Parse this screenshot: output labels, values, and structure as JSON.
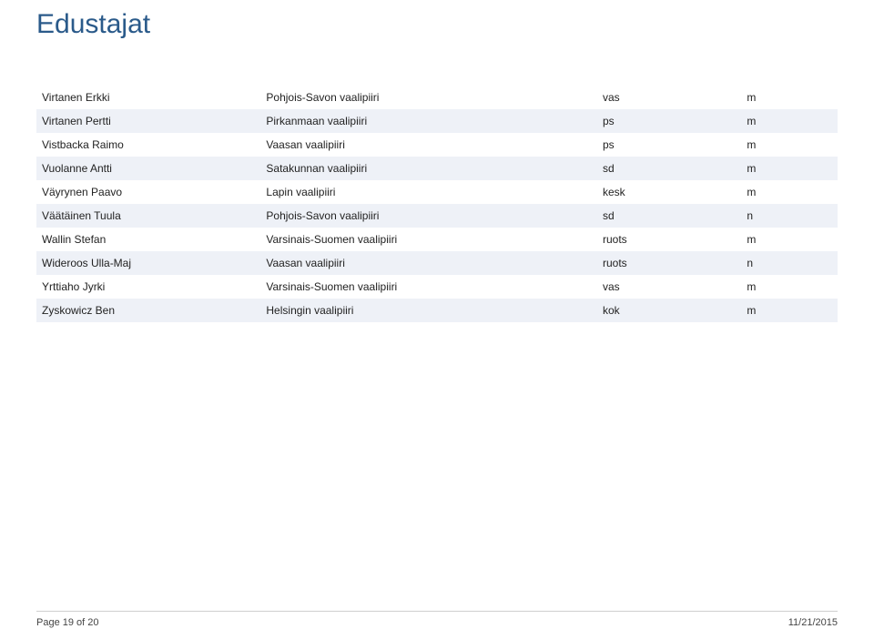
{
  "title": "Edustajat",
  "rows": [
    {
      "name": "Virtanen Erkki",
      "district": "Pohjois-Savon vaalipiiri",
      "party": "vas",
      "flag": "m",
      "alt": false
    },
    {
      "name": "Virtanen Pertti",
      "district": "Pirkanmaan vaalipiiri",
      "party": "ps",
      "flag": "m",
      "alt": true
    },
    {
      "name": "Vistbacka Raimo",
      "district": "Vaasan vaalipiiri",
      "party": "ps",
      "flag": "m",
      "alt": false
    },
    {
      "name": "Vuolanne Antti",
      "district": "Satakunnan vaalipiiri",
      "party": "sd",
      "flag": "m",
      "alt": true
    },
    {
      "name": "Väyrynen Paavo",
      "district": "Lapin vaalipiiri",
      "party": "kesk",
      "flag": "m",
      "alt": false
    },
    {
      "name": "Väätäinen Tuula",
      "district": "Pohjois-Savon vaalipiiri",
      "party": "sd",
      "flag": "n",
      "alt": true
    },
    {
      "name": "Wallin Stefan",
      "district": "Varsinais-Suomen vaalipiiri",
      "party": "ruots",
      "flag": "m",
      "alt": false
    },
    {
      "name": "Wideroos Ulla-Maj",
      "district": "Vaasan vaalipiiri",
      "party": "ruots",
      "flag": "n",
      "alt": true
    },
    {
      "name": "Yrttiaho Jyrki",
      "district": "Varsinais-Suomen vaalipiiri",
      "party": "vas",
      "flag": "m",
      "alt": false
    },
    {
      "name": "Zyskowicz Ben",
      "district": "Helsingin vaalipiiri",
      "party": "kok",
      "flag": "m",
      "alt": true
    }
  ],
  "footer": {
    "page": "Page 19 of 20",
    "date": "11/21/2015"
  },
  "style": {
    "title_color": "#2a5a8a",
    "alt_row_bg": "#eef1f7",
    "text_color": "#222",
    "footer_color": "#444",
    "divider_color": "#cfcfcf",
    "background_color": "#ffffff"
  }
}
